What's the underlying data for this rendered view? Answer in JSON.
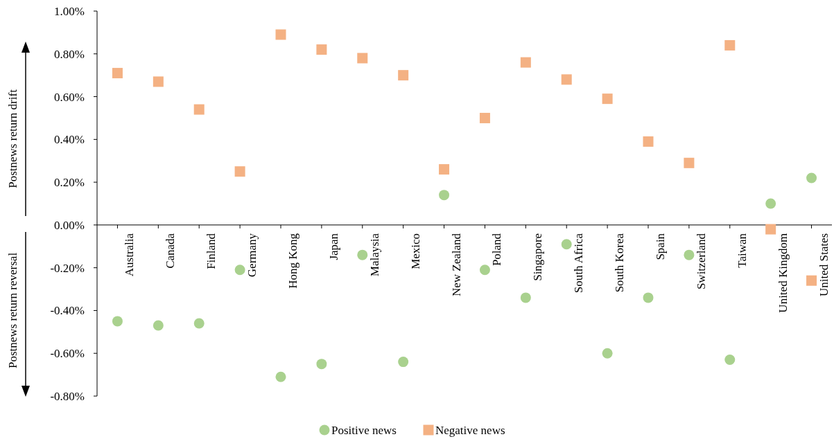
{
  "chart_data": {
    "type": "scatter",
    "ylabel": "Postnews return drift",
    "annotations": [
      "Postnews return reversal"
    ],
    "categories": [
      "Australia",
      "Canada",
      "Finland",
      "Germany",
      "Hong Kong",
      "Japan",
      "Malaysia",
      "Mexico",
      "New Zealand",
      "Poland",
      "Singapore",
      "South Africa",
      "South Korea",
      "Spain",
      "Switzerland",
      "Taiwan",
      "United Kingdom",
      "United States"
    ],
    "series": [
      {
        "name": "Positive news",
        "color": "#a9d18e",
        "marker": "circle",
        "values": [
          -0.45,
          -0.47,
          -0.46,
          -0.21,
          -0.71,
          -0.65,
          -0.14,
          -0.64,
          0.14,
          -0.21,
          -0.34,
          -0.09,
          -0.6,
          -0.34,
          -0.14,
          -0.63,
          0.1,
          0.22
        ]
      },
      {
        "name": "Negative news",
        "color": "#f4b183",
        "marker": "square",
        "values": [
          0.71,
          0.67,
          0.54,
          0.25,
          0.89,
          0.82,
          0.78,
          0.7,
          0.26,
          0.5,
          0.76,
          0.68,
          0.59,
          0.39,
          0.29,
          0.84,
          -0.02,
          -0.26
        ]
      }
    ],
    "ylim": [
      -0.8,
      1.0
    ],
    "yticks": [
      {
        "value": -0.8,
        "label": "-0.80%"
      },
      {
        "value": -0.6,
        "label": "-0.60%"
      },
      {
        "value": -0.4,
        "label": "-0.40%"
      },
      {
        "value": -0.2,
        "label": "-0.20%"
      },
      {
        "value": 0,
        "label": "0.00%"
      },
      {
        "value": 0.2,
        "label": "0.20%"
      },
      {
        "value": 0.4,
        "label": "0.40%"
      },
      {
        "value": 0.6,
        "label": "0.60%"
      },
      {
        "value": 0.8,
        "label": "0.80%"
      },
      {
        "value": 1.0,
        "label": "1.00%"
      }
    ],
    "grid": false,
    "legend": "bottom"
  }
}
